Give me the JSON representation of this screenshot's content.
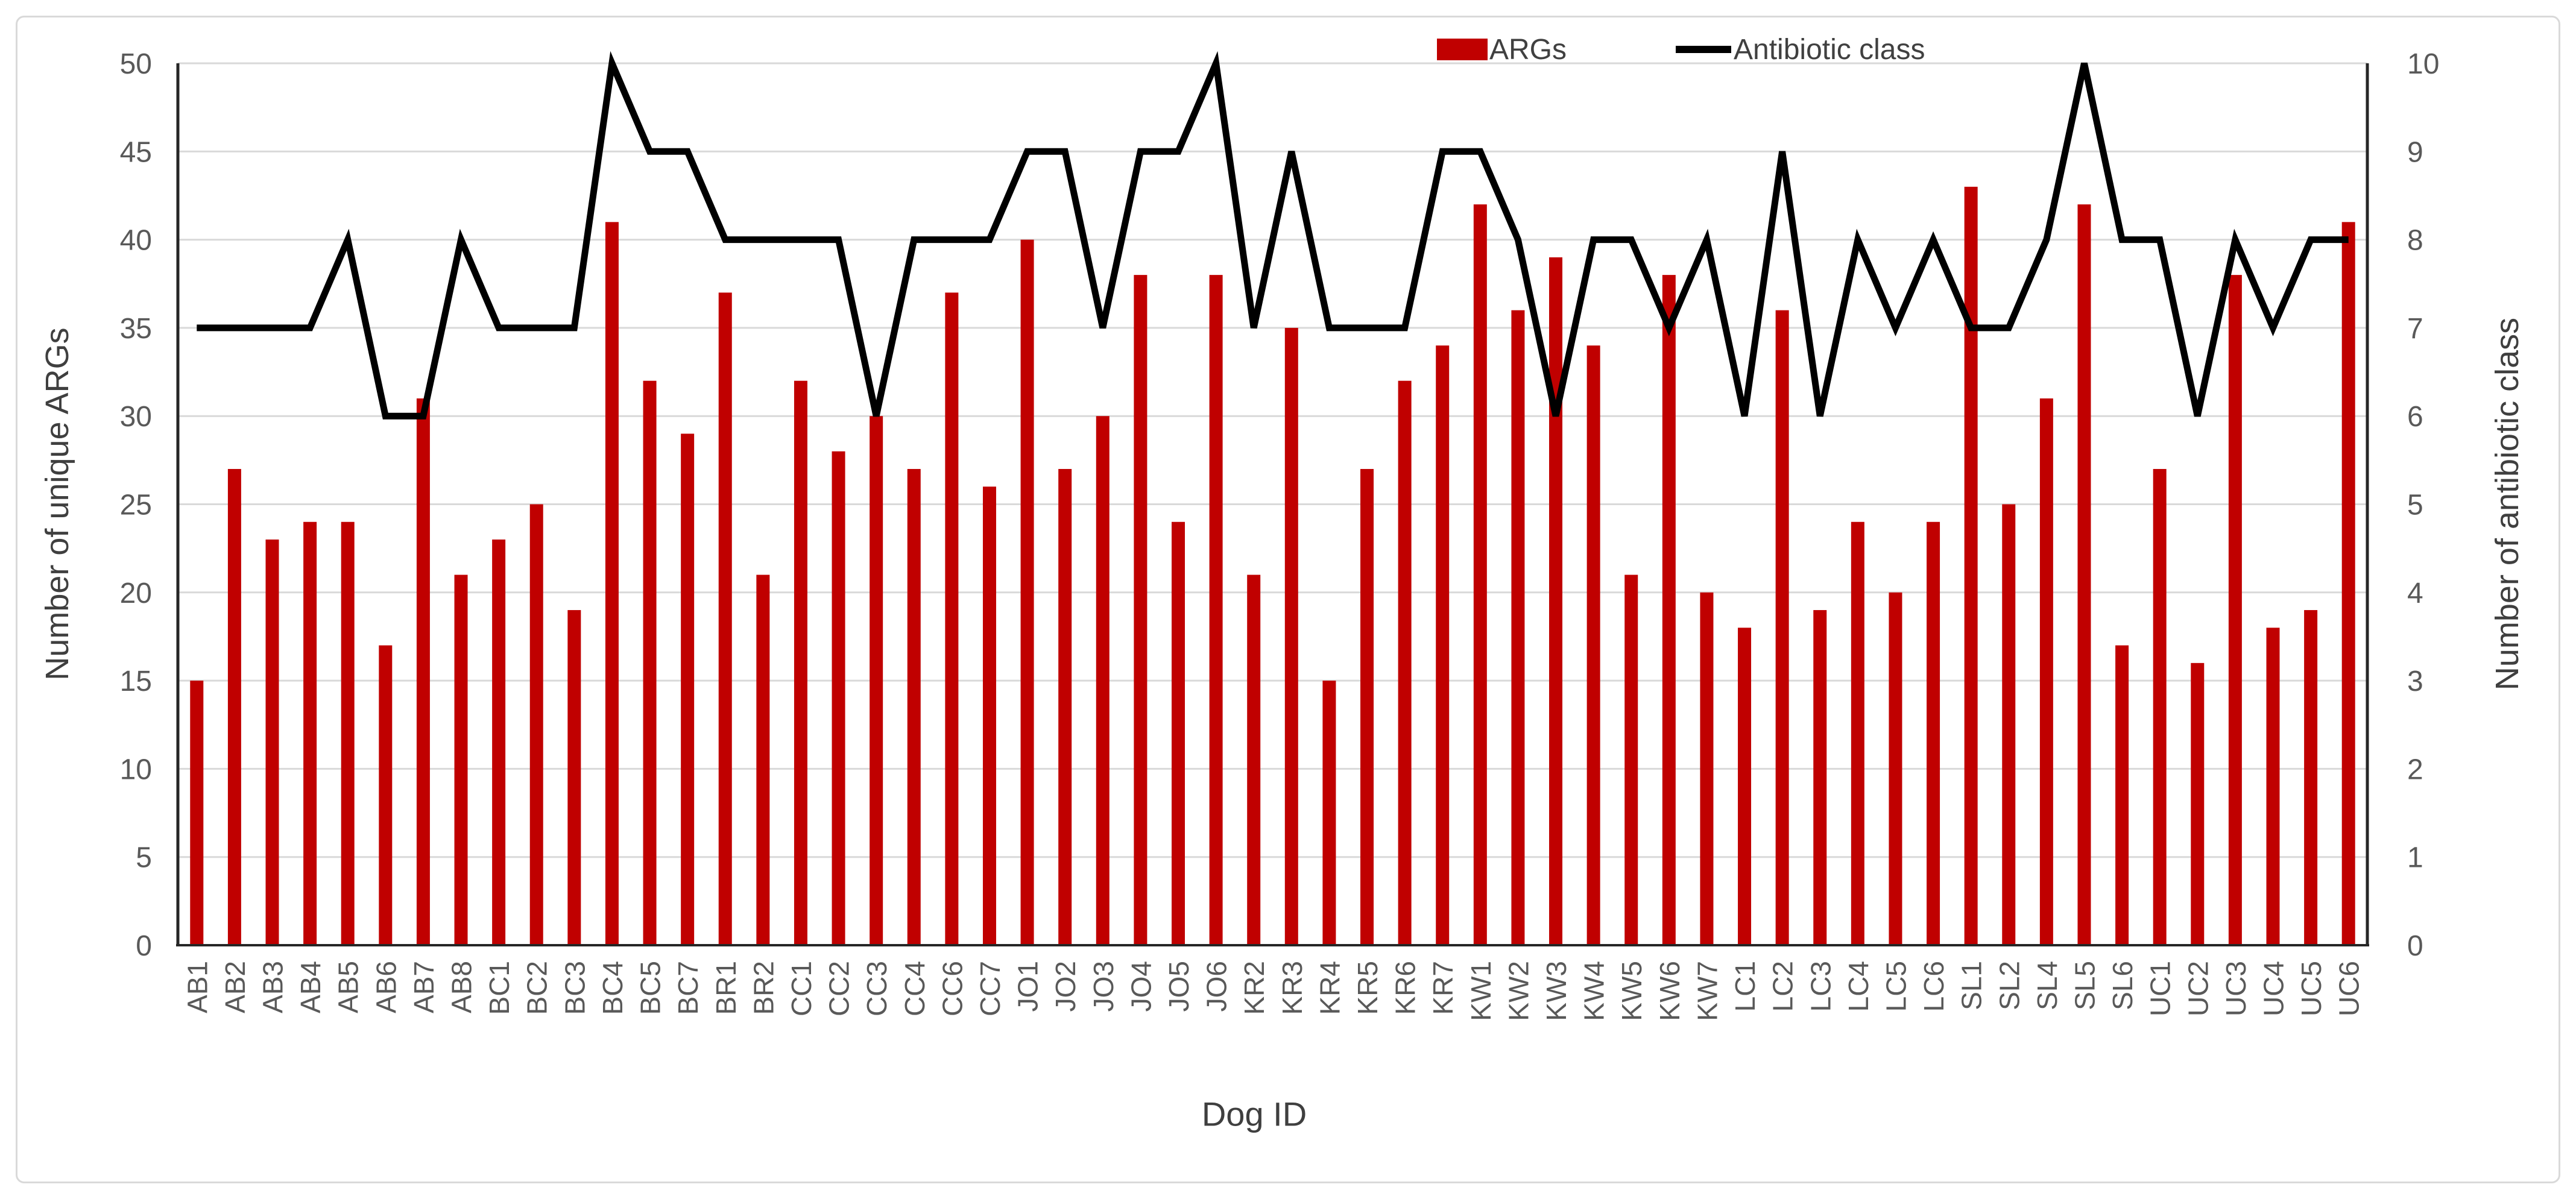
{
  "figure": {
    "background": "#ffffff",
    "frame_border_color": "#d9d9d9"
  },
  "legend": {
    "position": "top-center",
    "items": [
      {
        "label": "ARGs",
        "swatch": "bar",
        "color": "#c00000"
      },
      {
        "label": "Antibiotic class",
        "swatch": "line",
        "color": "#000000"
      }
    ]
  },
  "axes": {
    "left_title": "Number of unique ARGs",
    "right_title": "Number of antibiotic class",
    "x_title": "Dog ID",
    "left_ticks": [
      0,
      5,
      10,
      15,
      20,
      25,
      30,
      35,
      40,
      45,
      50
    ],
    "right_ticks": [
      0,
      1,
      2,
      3,
      4,
      5,
      6,
      7,
      8,
      9,
      10
    ]
  },
  "colors": {
    "bar": "#c00000",
    "line": "#000000",
    "grid": "#d9d9d9",
    "spine": "#262626",
    "tick_text": "#595959",
    "title_text": "#3f3f3f"
  },
  "chart_data": {
    "type": "combo-bar-line",
    "title": "",
    "xlabel": "Dog ID",
    "ylabel_left": "Number of unique ARGs",
    "ylabel_right": "Number of antibiotic class",
    "ylim_left": [
      0,
      50
    ],
    "ytick_step_left": 5,
    "ylim_right": [
      0,
      10
    ],
    "ytick_step_right": 1,
    "grid": "horizontal",
    "legend_position": "top",
    "categories": [
      "AB1",
      "AB2",
      "AB3",
      "AB4",
      "AB5",
      "AB6",
      "AB7",
      "AB8",
      "BC1",
      "BC2",
      "BC3",
      "BC4",
      "BC5",
      "BC7",
      "BR1",
      "BR2",
      "CC1",
      "CC2",
      "CC3",
      "CC4",
      "CC6",
      "CC7",
      "JO1",
      "JO2",
      "JO3",
      "JO4",
      "JO5",
      "JO6",
      "KR2",
      "KR3",
      "KR4",
      "KR5",
      "KR6",
      "KR7",
      "KW1",
      "KW2",
      "KW3",
      "KW4",
      "KW5",
      "KW6",
      "KW7",
      "LC1",
      "LC2",
      "LC3",
      "LC4",
      "LC5",
      "LC6",
      "SL1",
      "SL2",
      "SL4",
      "SL5",
      "SL6",
      "UC1",
      "UC2",
      "UC3",
      "UC4",
      "UC5",
      "UC6"
    ],
    "series": [
      {
        "name": "ARGs",
        "type": "bar",
        "axis": "left",
        "color": "#c00000",
        "values": [
          15,
          27,
          23,
          24,
          24,
          17,
          31,
          21,
          23,
          25,
          19,
          41,
          32,
          29,
          37,
          21,
          32,
          28,
          30,
          27,
          37,
          26,
          40,
          27,
          30,
          38,
          24,
          38,
          21,
          35,
          15,
          27,
          32,
          34,
          42,
          36,
          39,
          34,
          21,
          38,
          20,
          18,
          36,
          19,
          24,
          20,
          24,
          43,
          25,
          31,
          42,
          17,
          27,
          16,
          38,
          18,
          19,
          41
        ]
      },
      {
        "name": "Antibiotic class",
        "type": "line",
        "axis": "right",
        "color": "#000000",
        "values": [
          7,
          7,
          7,
          7,
          8,
          6,
          6,
          8,
          7,
          7,
          7,
          10,
          9,
          9,
          8,
          8,
          8,
          8,
          6,
          8,
          8,
          8,
          9,
          9,
          7,
          9,
          9,
          10,
          7,
          9,
          7,
          7,
          7,
          9,
          9,
          8,
          6,
          8,
          8,
          7,
          8,
          6,
          9,
          6,
          8,
          7,
          8,
          7,
          7,
          8,
          10,
          8,
          8,
          6,
          8,
          7,
          8,
          8
        ]
      }
    ]
  }
}
